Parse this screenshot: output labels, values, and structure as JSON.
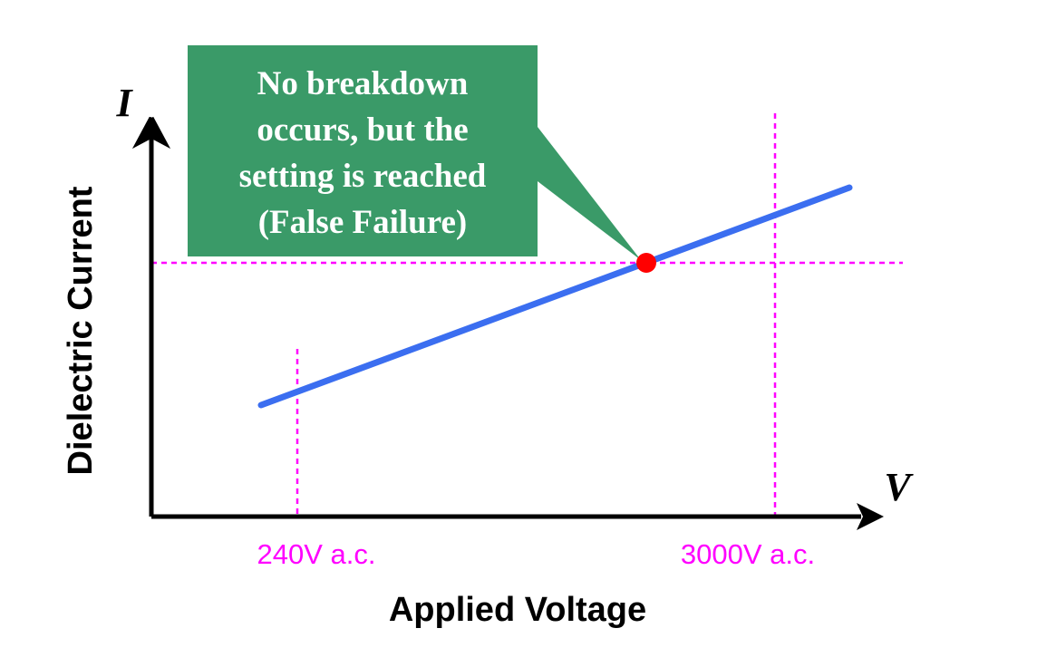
{
  "diagram": {
    "y_axis_symbol": "I",
    "x_axis_symbol": "V",
    "y_axis_label": "Dielectric Current",
    "x_axis_label": "Applied Voltage",
    "markers": [
      "240V a.c.",
      "3000V a.c."
    ],
    "callout": [
      "No breakdown",
      "occurs, but the",
      "setting is reached",
      "(False Failure)"
    ]
  }
}
